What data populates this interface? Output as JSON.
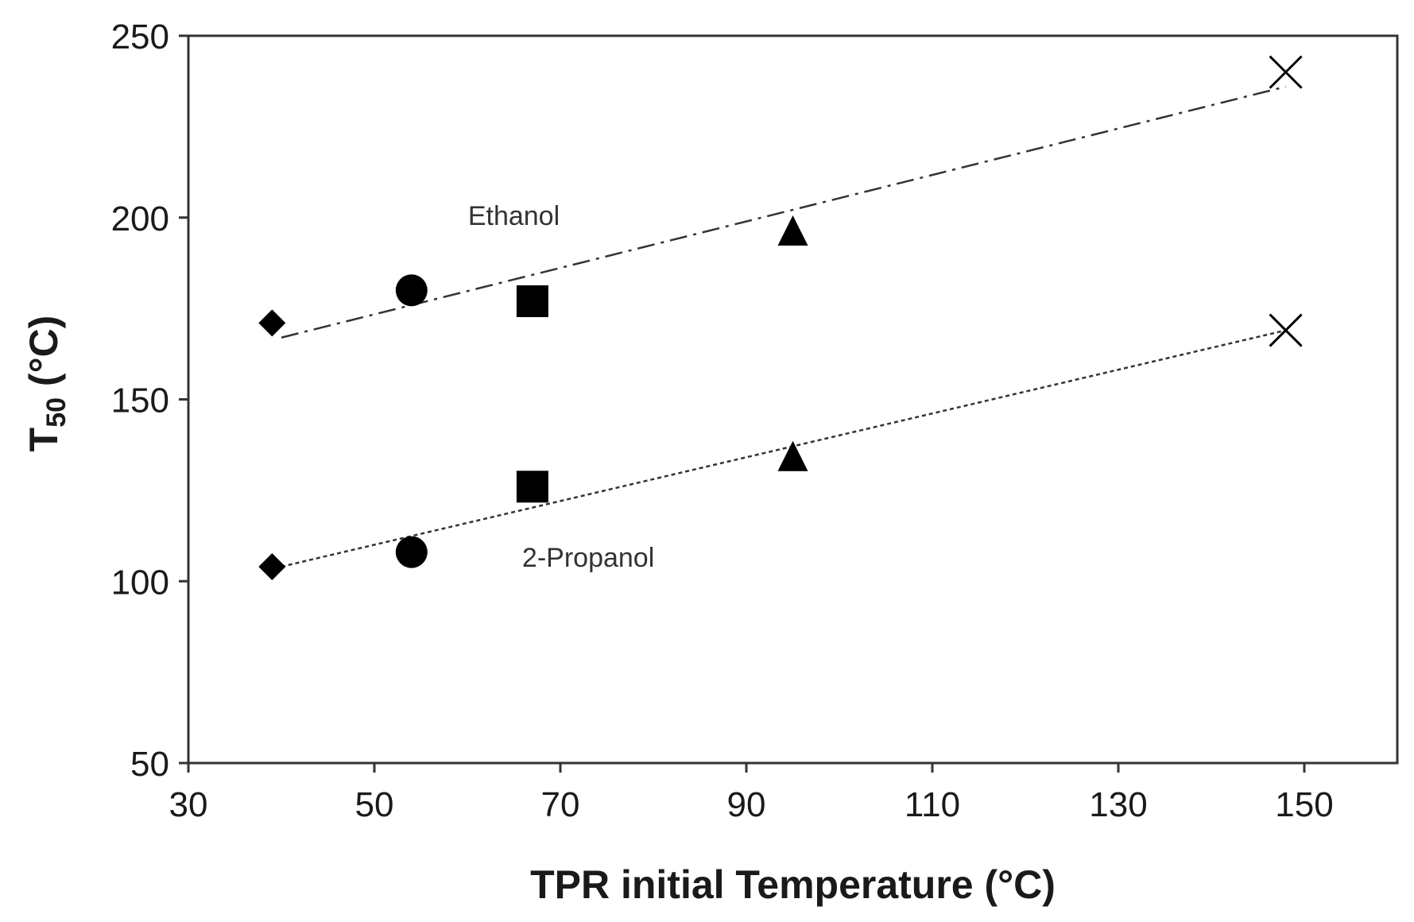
{
  "chart_data": {
    "type": "scatter",
    "title": "",
    "xlabel": "TPR initial Temperature (°C)",
    "ylabel_main": "T",
    "ylabel_sub": "50",
    "ylabel_unit": " (°C)",
    "xlim": [
      30,
      160
    ],
    "ylim": [
      50,
      250
    ],
    "xticks": [
      30,
      50,
      70,
      90,
      110,
      130,
      150
    ],
    "yticks": [
      50,
      100,
      150,
      200,
      250
    ],
    "grid": false,
    "colors": {
      "marker": "#000000",
      "line": "#333333",
      "axis": "#333333"
    },
    "series": [
      {
        "name": "Ethanol",
        "annotation": {
          "text": "Ethanol",
          "x": 65,
          "y": 198
        },
        "points": [
          {
            "x": 39,
            "y": 171,
            "marker": "diamond"
          },
          {
            "x": 54,
            "y": 180,
            "marker": "circle"
          },
          {
            "x": 67,
            "y": 177,
            "marker": "square"
          },
          {
            "x": 95,
            "y": 196,
            "marker": "triangle"
          },
          {
            "x": 148,
            "y": 240,
            "marker": "x"
          }
        ],
        "trendline": {
          "x": [
            40,
            148
          ],
          "y": [
            167,
            236
          ],
          "style": "dashdot"
        }
      },
      {
        "name": "2-Propanol",
        "annotation": {
          "text": "2-Propanol",
          "x": 73,
          "y": 104
        },
        "points": [
          {
            "x": 39,
            "y": 104,
            "marker": "diamond"
          },
          {
            "x": 54,
            "y": 108,
            "marker": "circle"
          },
          {
            "x": 67,
            "y": 126,
            "marker": "square"
          },
          {
            "x": 95,
            "y": 134,
            "marker": "triangle"
          },
          {
            "x": 148,
            "y": 169,
            "marker": "x"
          }
        ],
        "trendline": {
          "x": [
            40,
            148
          ],
          "y": [
            104,
            169
          ],
          "style": "dotted"
        }
      }
    ]
  }
}
